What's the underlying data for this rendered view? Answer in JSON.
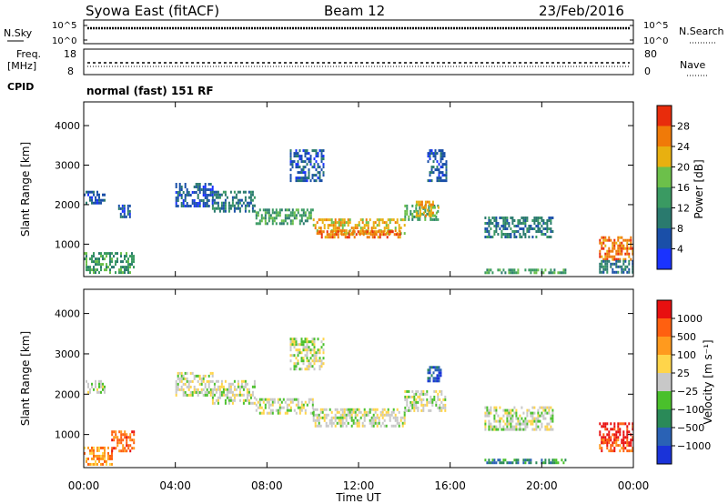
{
  "header": {
    "station": "Syowa East (fitACF)",
    "beam": "Beam 12",
    "date": "23/Feb/2016"
  },
  "params": {
    "nsky_label": "N.Sky",
    "nsearch_label": "N.Search",
    "noise_ticks": [
      "10^5",
      "10^0"
    ],
    "freq_label_1": "Freq.",
    "freq_label_2": "[MHz]",
    "freq_ticks": [
      "18",
      "8"
    ],
    "nave_label": "Nave",
    "nave_ticks": [
      "80",
      "0"
    ],
    "cpid_label": "CPID",
    "cpid_value": "normal (fast) 151 RF"
  },
  "chart_data": [
    {
      "type": "heatmap",
      "quantity": "power",
      "ylabel": "Slant Range [km]",
      "yticks": [
        "1000",
        "2000",
        "3000",
        "4000"
      ],
      "ylim": [
        180,
        4600
      ],
      "xlim": [
        0,
        24
      ],
      "colorbar_label": "Power [dB]",
      "colorbar_ticks": [
        "4",
        "8",
        "12",
        "16",
        "20",
        "24",
        "28"
      ],
      "colorbar_colors": [
        "#1a33ff",
        "#1a4fa8",
        "#2a7a6e",
        "#3a9a62",
        "#6cc04a",
        "#e8b010",
        "#f07a08",
        "#e82c0c"
      ],
      "regions": [
        {
          "x": [
            0.0,
            0.9
          ],
          "y": [
            2050,
            2350
          ],
          "level": 1
        },
        {
          "x": [
            0.0,
            2.2
          ],
          "y": [
            250,
            800
          ],
          "level": 3
        },
        {
          "x": [
            1.5,
            2.0
          ],
          "y": [
            1700,
            2000
          ],
          "level": 1
        },
        {
          "x": [
            4.0,
            5.6
          ],
          "y": [
            1950,
            2550
          ],
          "level": 1
        },
        {
          "x": [
            5.6,
            7.5
          ],
          "y": [
            1800,
            2350
          ],
          "level": 2
        },
        {
          "x": [
            7.5,
            10.0
          ],
          "y": [
            1550,
            1900
          ],
          "level": 3
        },
        {
          "x": [
            10.0,
            14.0
          ],
          "y": [
            1250,
            1650
          ],
          "level": 5
        },
        {
          "x": [
            10.2,
            13.8
          ],
          "y": [
            1200,
            1350
          ],
          "level": 6
        },
        {
          "x": [
            9.0,
            10.5
          ],
          "y": [
            2600,
            3400
          ],
          "level": 1
        },
        {
          "x": [
            14.0,
            15.5
          ],
          "y": [
            1600,
            2000
          ],
          "level": 3
        },
        {
          "x": [
            14.5,
            15.5
          ],
          "y": [
            1700,
            2100
          ],
          "level": 5
        },
        {
          "x": [
            15.0,
            15.8
          ],
          "y": [
            2600,
            3400
          ],
          "level": 1
        },
        {
          "x": [
            17.5,
            20.5
          ],
          "y": [
            1200,
            1700
          ],
          "level": 2
        },
        {
          "x": [
            17.5,
            21.0
          ],
          "y": [
            280,
            380
          ],
          "level": 3
        },
        {
          "x": [
            22.5,
            24.0
          ],
          "y": [
            600,
            1200
          ],
          "level": 6
        },
        {
          "x": [
            22.5,
            24.0
          ],
          "y": [
            300,
            600
          ],
          "level": 2
        }
      ]
    },
    {
      "type": "heatmap",
      "quantity": "velocity",
      "ylabel": "Slant Range [km]",
      "yticks": [
        "1000",
        "2000",
        "3000",
        "4000"
      ],
      "ylim": [
        180,
        4600
      ],
      "xlim": [
        0,
        24
      ],
      "colorbar_label": "Velocity [m s⁻¹]",
      "colorbar_ticks": [
        "1000",
        "500",
        "100",
        "25",
        "−25",
        "−100",
        "−500",
        "−1000"
      ],
      "colorbar_colors": [
        "#1a33d9",
        "#2a62b5",
        "#2a8a58",
        "#4ac02c",
        "#c8c8c8",
        "#ffd54a",
        "#ff9a1e",
        "#ff6010",
        "#e81010"
      ],
      "regions": [
        {
          "x": [
            0.0,
            0.9
          ],
          "y": [
            2050,
            2350
          ],
          "level": 4
        },
        {
          "x": [
            0.0,
            1.2
          ],
          "y": [
            250,
            700
          ],
          "level": 6
        },
        {
          "x": [
            1.2,
            2.2
          ],
          "y": [
            600,
            1100
          ],
          "level": 7
        },
        {
          "x": [
            4.0,
            5.6
          ],
          "y": [
            1950,
            2550
          ],
          "level": 4
        },
        {
          "x": [
            5.6,
            7.5
          ],
          "y": [
            1800,
            2350
          ],
          "level": 4
        },
        {
          "x": [
            7.5,
            10.0
          ],
          "y": [
            1500,
            1900
          ],
          "level": 4
        },
        {
          "x": [
            10.0,
            14.0
          ],
          "y": [
            1200,
            1650
          ],
          "level": 4
        },
        {
          "x": [
            9.0,
            10.5
          ],
          "y": [
            2600,
            3400
          ],
          "level": 4
        },
        {
          "x": [
            14.0,
            15.8
          ],
          "y": [
            1600,
            2100
          ],
          "level": 4
        },
        {
          "x": [
            15.0,
            15.6
          ],
          "y": [
            2300,
            2700
          ],
          "level": 1
        },
        {
          "x": [
            17.5,
            20.5
          ],
          "y": [
            1100,
            1700
          ],
          "level": 4
        },
        {
          "x": [
            17.5,
            21.0
          ],
          "y": [
            280,
            400
          ],
          "level": 2
        },
        {
          "x": [
            22.5,
            24.0
          ],
          "y": [
            800,
            1300
          ],
          "level": 8
        },
        {
          "x": [
            22.5,
            24.0
          ],
          "y": [
            600,
            900
          ],
          "level": 7
        }
      ]
    }
  ],
  "xaxis": {
    "ticks": [
      "00:00",
      "04:00",
      "08:00",
      "12:00",
      "16:00",
      "20:00",
      "00:00"
    ],
    "label": "Time UT"
  }
}
